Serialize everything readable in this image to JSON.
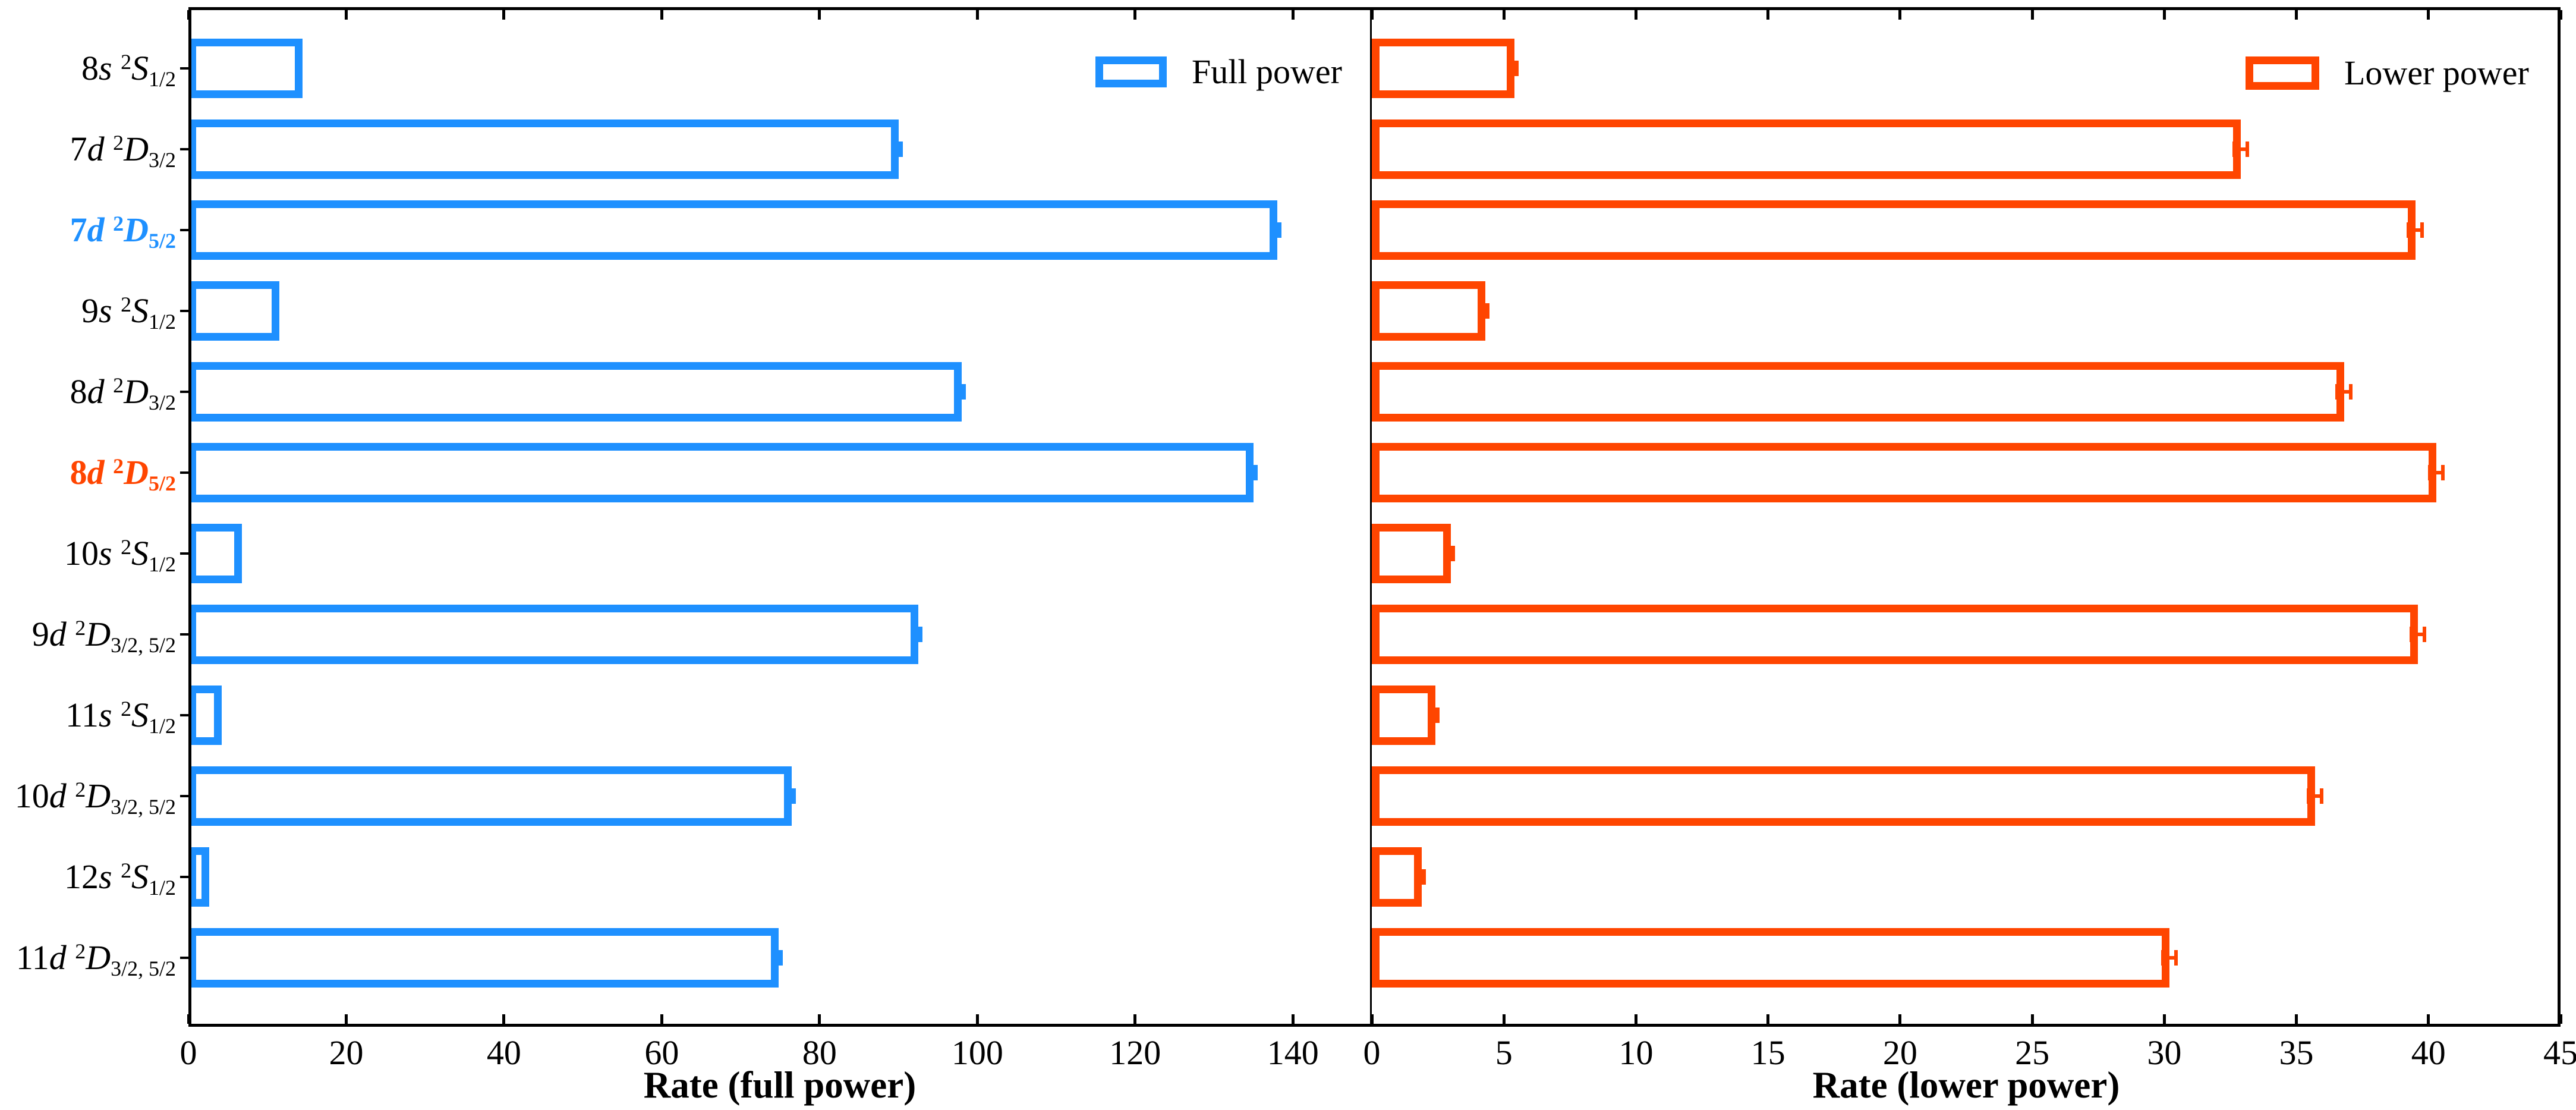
{
  "chart_data": {
    "type": "bar",
    "orientation": "horizontal",
    "grid": false,
    "background": "#FFFFFF",
    "categories": [
      "8s ²S₁/₂",
      "7d ²D₃/₂",
      "7d ²D₅/₂",
      "9s ²S₁/₂",
      "8d ²D₃/₂",
      "8d ²D₅/₂",
      "10s ²S₁/₂",
      "9d ²D₃/₂,₅/₂",
      "11s ²S₁/₂",
      "10d ²D₃/₂,₅/₂",
      "12s ²S₁/₂",
      "11d ²D₃/₂,₅/₂"
    ],
    "category_parts": [
      {
        "pre": "8",
        "orb": "s",
        "sup": "2",
        "term": "S",
        "sub": "1/2",
        "highlight": null
      },
      {
        "pre": "7",
        "orb": "d",
        "sup": "2",
        "term": "D",
        "sub": "3/2",
        "highlight": null
      },
      {
        "pre": "7",
        "orb": "d",
        "sup": "2",
        "term": "D",
        "sub": "5/2",
        "highlight": "full"
      },
      {
        "pre": "9",
        "orb": "s",
        "sup": "2",
        "term": "S",
        "sub": "1/2",
        "highlight": null
      },
      {
        "pre": "8",
        "orb": "d",
        "sup": "2",
        "term": "D",
        "sub": "3/2",
        "highlight": null
      },
      {
        "pre": "8",
        "orb": "d",
        "sup": "2",
        "term": "D",
        "sub": "5/2",
        "highlight": "lower"
      },
      {
        "pre": "10",
        "orb": "s",
        "sup": "2",
        "term": "S",
        "sub": "1/2",
        "highlight": null
      },
      {
        "pre": "9",
        "orb": "d",
        "sup": "2",
        "term": "D",
        "sub": "3/2, 5/2",
        "highlight": null
      },
      {
        "pre": "11",
        "orb": "s",
        "sup": "2",
        "term": "S",
        "sub": "1/2",
        "highlight": null
      },
      {
        "pre": "10",
        "orb": "d",
        "sup": "2",
        "term": "D",
        "sub": "3/2, 5/2",
        "highlight": null
      },
      {
        "pre": "12",
        "orb": "s",
        "sup": "2",
        "term": "S",
        "sub": "1/2",
        "highlight": null
      },
      {
        "pre": "11",
        "orb": "d",
        "sup": "2",
        "term": "D",
        "sub": "3/2, 5/2",
        "highlight": null
      }
    ],
    "series": [
      {
        "name": "Full power",
        "panel": 0,
        "color": "#1E90FF",
        "values": [
          14.5,
          90,
          138,
          11.5,
          98,
          135,
          6.8,
          92.5,
          4.2,
          76.5,
          2.6,
          74.8
        ],
        "errors": [
          null,
          0.5,
          0.5,
          null,
          0.5,
          0.5,
          null,
          0.5,
          null,
          0.5,
          null,
          0.5
        ]
      },
      {
        "name": "Lower power",
        "panel": 1,
        "color": "#FF4500",
        "values": [
          5.4,
          32.9,
          39.5,
          4.3,
          36.8,
          40.3,
          3.0,
          39.6,
          2.4,
          35.7,
          1.9,
          30.2
        ],
        "errors": [
          0.1,
          0.25,
          0.25,
          0.1,
          0.25,
          0.25,
          0.1,
          0.25,
          0.1,
          0.25,
          0.1,
          0.25
        ]
      }
    ],
    "panels": [
      {
        "xlabel": "Rate (full power)",
        "xlim": [
          0,
          150
        ],
        "xticks": [
          0,
          20,
          40,
          60,
          80,
          100,
          120,
          140
        ],
        "legend": "Full power",
        "legend_position": "top-right"
      },
      {
        "xlabel": "Rate (lower power)",
        "xlim": [
          0,
          45
        ],
        "xticks": [
          0,
          5,
          10,
          15,
          20,
          25,
          30,
          35,
          40,
          45
        ],
        "legend": "Lower power",
        "legend_position": "top-right"
      }
    ],
    "highlight_colors": {
      "full": "#1E90FF",
      "lower": "#FF4500"
    }
  }
}
